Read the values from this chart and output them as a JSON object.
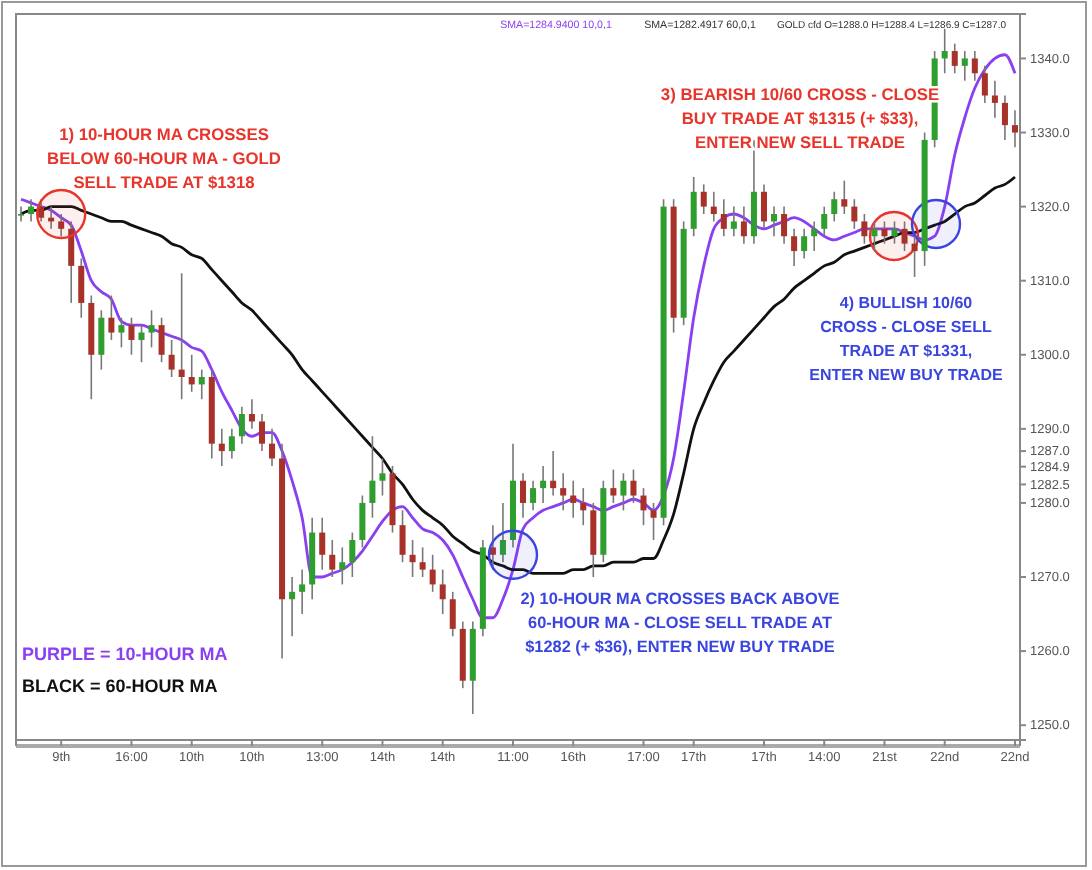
{
  "chart_data": {
    "type": "candlestick",
    "categories": [
      null,
      null,
      null,
      null,
      "9th",
      null,
      null,
      null,
      null,
      null,
      null,
      "16:00",
      null,
      null,
      null,
      null,
      null,
      "10th",
      null,
      null,
      null,
      null,
      null,
      "10th",
      null,
      null,
      null,
      null,
      null,
      null,
      "13:00",
      null,
      null,
      null,
      null,
      null,
      "14th",
      null,
      null,
      null,
      null,
      null,
      "14th",
      null,
      null,
      null,
      null,
      null,
      null,
      "11:00",
      null,
      null,
      null,
      null,
      null,
      "16th",
      null,
      null,
      null,
      null,
      null,
      null,
      "17:00",
      null,
      null,
      null,
      null,
      "17th",
      null,
      null,
      null,
      null,
      null,
      null,
      "17th",
      null,
      null,
      null,
      null,
      null,
      "14:00",
      null,
      null,
      null,
      null,
      null,
      "21st",
      null,
      null,
      null,
      null,
      null,
      "22nd",
      null,
      null,
      null,
      null,
      null,
      null,
      "22nd"
    ],
    "ohlc": [
      [
        1319,
        1320,
        1318,
        1319
      ],
      [
        1319,
        1321,
        1318,
        1320
      ],
      [
        1320,
        1321,
        1318,
        1318.5
      ],
      [
        1318.5,
        1320,
        1317,
        1318
      ],
      [
        1318,
        1319,
        1316,
        1317
      ],
      [
        1317,
        1318,
        1307,
        1312
      ],
      [
        1312,
        1313,
        1305,
        1307
      ],
      [
        1307,
        1308,
        1294,
        1300
      ],
      [
        1300,
        1306,
        1298,
        1305
      ],
      [
        1305,
        1308,
        1302,
        1303
      ],
      [
        1303,
        1305,
        1301,
        1304
      ],
      [
        1304,
        1305,
        1300,
        1302
      ],
      [
        1302,
        1304,
        1299,
        1303
      ],
      [
        1303,
        1306,
        1301,
        1304
      ],
      [
        1304,
        1305,
        1299,
        1300
      ],
      [
        1300,
        1302,
        1297,
        1298
      ],
      [
        1298,
        1311,
        1294,
        1297
      ],
      [
        1297,
        1300,
        1295,
        1296
      ],
      [
        1296,
        1298,
        1294,
        1297
      ],
      [
        1297,
        1298,
        1286,
        1288
      ],
      [
        1288,
        1290,
        1285,
        1287
      ],
      [
        1287,
        1290,
        1286,
        1289
      ],
      [
        1289,
        1293,
        1288,
        1292
      ],
      [
        1292,
        1294,
        1290,
        1291
      ],
      [
        1291,
        1292,
        1287,
        1288
      ],
      [
        1288,
        1290,
        1285,
        1286
      ],
      [
        1286,
        1288,
        1259,
        1267
      ],
      [
        1267,
        1270,
        1262,
        1268
      ],
      [
        1268,
        1271,
        1265,
        1269
      ],
      [
        1269,
        1278,
        1267,
        1276
      ],
      [
        1276,
        1278,
        1271,
        1273
      ],
      [
        1273,
        1275,
        1270,
        1271
      ],
      [
        1271,
        1274,
        1269,
        1272
      ],
      [
        1272,
        1276,
        1270,
        1275
      ],
      [
        1275,
        1281,
        1274,
        1280
      ],
      [
        1280,
        1289,
        1278,
        1283
      ],
      [
        1283,
        1286,
        1281,
        1284
      ],
      [
        1284,
        1285,
        1276,
        1277
      ],
      [
        1277,
        1279,
        1272,
        1273
      ],
      [
        1273,
        1275,
        1270,
        1272
      ],
      [
        1272,
        1274,
        1270,
        1271
      ],
      [
        1271,
        1273,
        1268,
        1269
      ],
      [
        1269,
        1271,
        1265,
        1267
      ],
      [
        1267,
        1268,
        1262,
        1263
      ],
      [
        1263,
        1264,
        1255,
        1256
      ],
      [
        1256,
        1264,
        1251.5,
        1263
      ],
      [
        1263,
        1275,
        1262,
        1274
      ],
      [
        1274,
        1277,
        1271,
        1273
      ],
      [
        1273,
        1280,
        1272,
        1275
      ],
      [
        1275,
        1288,
        1274,
        1283
      ],
      [
        1283,
        1284,
        1278,
        1280
      ],
      [
        1280,
        1283,
        1279,
        1282
      ],
      [
        1282,
        1285,
        1280,
        1283
      ],
      [
        1283,
        1287,
        1281,
        1282
      ],
      [
        1282,
        1284,
        1279,
        1281
      ],
      [
        1281,
        1283,
        1278,
        1280
      ],
      [
        1280,
        1282,
        1277,
        1279
      ],
      [
        1279,
        1280,
        1270,
        1273
      ],
      [
        1273,
        1283,
        1272,
        1282
      ],
      [
        1282,
        1284.5,
        1280,
        1281
      ],
      [
        1281,
        1284,
        1279,
        1283
      ],
      [
        1283,
        1284.5,
        1280,
        1281
      ],
      [
        1281,
        1282,
        1277,
        1279
      ],
      [
        1279,
        1280,
        1275,
        1278
      ],
      [
        1278,
        1321,
        1277,
        1320
      ],
      [
        1320,
        1321,
        1303,
        1305
      ],
      [
        1305,
        1318,
        1304,
        1317
      ],
      [
        1317,
        1324,
        1316,
        1322
      ],
      [
        1322,
        1323,
        1319,
        1320
      ],
      [
        1320,
        1322,
        1318,
        1319
      ],
      [
        1319,
        1321,
        1316,
        1317
      ],
      [
        1317,
        1320,
        1316,
        1318
      ],
      [
        1318,
        1320,
        1315,
        1316
      ],
      [
        1316,
        1329,
        1315,
        1322
      ],
      [
        1322,
        1323,
        1317,
        1318
      ],
      [
        1318,
        1320,
        1316,
        1319
      ],
      [
        1319,
        1320,
        1315,
        1316
      ],
      [
        1316,
        1317,
        1312,
        1314
      ],
      [
        1314,
        1317,
        1313,
        1316
      ],
      [
        1316,
        1318,
        1314,
        1317
      ],
      [
        1317,
        1320,
        1316,
        1319
      ],
      [
        1319,
        1322,
        1318,
        1321
      ],
      [
        1321,
        1323.5,
        1319,
        1320
      ],
      [
        1320,
        1321,
        1317,
        1318
      ],
      [
        1318,
        1319,
        1315,
        1316
      ],
      [
        1316,
        1318,
        1314,
        1317
      ],
      [
        1317,
        1318,
        1315,
        1316
      ],
      [
        1316,
        1318,
        1315,
        1317
      ],
      [
        1317,
        1318,
        1314,
        1315
      ],
      [
        1315,
        1316,
        1310.5,
        1314
      ],
      [
        1314,
        1330,
        1312,
        1329
      ],
      [
        1329,
        1341,
        1328,
        1340
      ],
      [
        1340,
        1344,
        1338,
        1341
      ],
      [
        1341,
        1342,
        1338,
        1339
      ],
      [
        1339,
        1341,
        1337,
        1340
      ],
      [
        1340,
        1341,
        1337,
        1338
      ],
      [
        1338,
        1339,
        1334,
        1335
      ],
      [
        1335,
        1337,
        1332,
        1334
      ],
      [
        1334,
        1335,
        1329,
        1331
      ],
      [
        1331,
        1333,
        1328,
        1330
      ]
    ],
    "series": [
      {
        "type": "line",
        "name": "PURPLE = 10-HOUR MA",
        "color": "#8a3ff0",
        "values": [
          1321,
          1320.5,
          1320,
          1319.5,
          1318.5,
          1317.5,
          1314,
          1310,
          1308.5,
          1307.5,
          1304.5,
          1304,
          1304,
          1303.5,
          1303,
          1302.5,
          1302,
          1301,
          1300.5,
          1298,
          1295,
          1292.5,
          1290,
          1289,
          1289.5,
          1289.5,
          1287,
          1283,
          1278,
          1270,
          1270,
          1270.5,
          1271,
          1272,
          1273.5,
          1275.5,
          1277.5,
          1279,
          1279.5,
          1278,
          1276.5,
          1276,
          1275,
          1273,
          1270,
          1267,
          1264.5,
          1264.5,
          1267,
          1271,
          1276.5,
          1278,
          1279,
          1279.5,
          1280,
          1280.5,
          1280,
          1279.5,
          1279,
          1279.5,
          1280,
          1280.5,
          1280,
          1279,
          1281,
          1286,
          1295,
          1305,
          1312,
          1317,
          1318.5,
          1319,
          1318.5,
          1317.5,
          1317,
          1317.5,
          1318,
          1318.5,
          1318,
          1317,
          1316,
          1315.5,
          1316,
          1316.5,
          1317,
          1317,
          1317,
          1317,
          1316.5,
          1316,
          1315.5,
          1316,
          1320,
          1327,
          1332,
          1336,
          1338.5,
          1340,
          1340.5,
          1338
        ]
      },
      {
        "type": "line",
        "name": "BLACK = 60-HOUR MA",
        "color": "#111111",
        "values": [
          1319,
          1319.5,
          1319.5,
          1320,
          1320,
          1320,
          1319.5,
          1319,
          1318.5,
          1318,
          1318,
          1317.5,
          1317,
          1316.5,
          1316,
          1315,
          1314.5,
          1313.5,
          1313,
          1311.5,
          1310,
          1308.5,
          1307,
          1306,
          1304.5,
          1303,
          1301.5,
          1300,
          1298,
          1296.5,
          1295,
          1293.5,
          1292,
          1290.5,
          1289,
          1287.5,
          1286,
          1284,
          1282.5,
          1280.5,
          1279,
          1278,
          1277,
          1275.5,
          1274.5,
          1273.5,
          1273,
          1272,
          1271.5,
          1271,
          1271,
          1270.5,
          1270.5,
          1270.5,
          1270.5,
          1271,
          1271,
          1271.5,
          1271.5,
          1272,
          1272,
          1272,
          1272.5,
          1272.5,
          1275,
          1278.5,
          1284,
          1290,
          1293.5,
          1296.5,
          1299,
          1300.5,
          1302,
          1303.5,
          1305,
          1306.5,
          1307.5,
          1309,
          1310,
          1311,
          1312,
          1312.5,
          1313.5,
          1314,
          1314.5,
          1315,
          1315.5,
          1316,
          1316.5,
          1316.5,
          1317,
          1317.5,
          1318,
          1319,
          1320,
          1320.5,
          1321.5,
          1322.5,
          1323,
          1324
        ]
      }
    ],
    "ylim": [
      1248,
      1346
    ],
    "yticks": [
      {
        "value": 1250,
        "label": "1250.0"
      },
      {
        "value": 1260,
        "label": "1260.0"
      },
      {
        "value": 1270,
        "label": "1270.0"
      },
      {
        "value": 1280,
        "label": "1280.0"
      },
      {
        "value": 1282.5,
        "label": "1282.5"
      },
      {
        "value": 1284.9,
        "label": "1284.9"
      },
      {
        "value": 1287,
        "label": "1287.0"
      },
      {
        "value": 1290,
        "label": "1290.0"
      },
      {
        "value": 1300,
        "label": "1300.0"
      },
      {
        "value": 1310,
        "label": "1310.0"
      },
      {
        "value": 1320,
        "label": "1320.0"
      },
      {
        "value": 1330,
        "label": "1330.0"
      },
      {
        "value": 1340,
        "label": "1340.0"
      }
    ],
    "legend": "bottom left",
    "annotations": [
      "SMA=1284.9400  10,0,1",
      "SMA=1282.4917  60,0,1",
      "GOLD cfd O=1288.0 H=1288.4 L=1286.9 C=1287.0",
      {
        "text": "1) 10-HOUR MA CROSSES\nBELOW 60-HOUR MA - GOLD\nSELL TRADE AT $1318",
        "x": "9th",
        "y": 1319
      },
      {
        "text": "2) 10-HOUR MA CROSSES BACK ABOVE\n60-HOUR MA - CLOSE SELL TRADE AT\n$1282 (+ $36), ENTER NEW BUY TRADE",
        "x": "11:00",
        "y": 1273
      },
      "3) BEARISH 10/60 CROSS - CLOSE\nBUY TRADE AT $1315 (+ $33),\nENTER NEW SELL TRADE",
      "4) BULLISH 10/60\nCROSS - CLOSE SELL\nTRADE AT $1331,\nENTER NEW BUY TRADE"
    ]
  }
}
